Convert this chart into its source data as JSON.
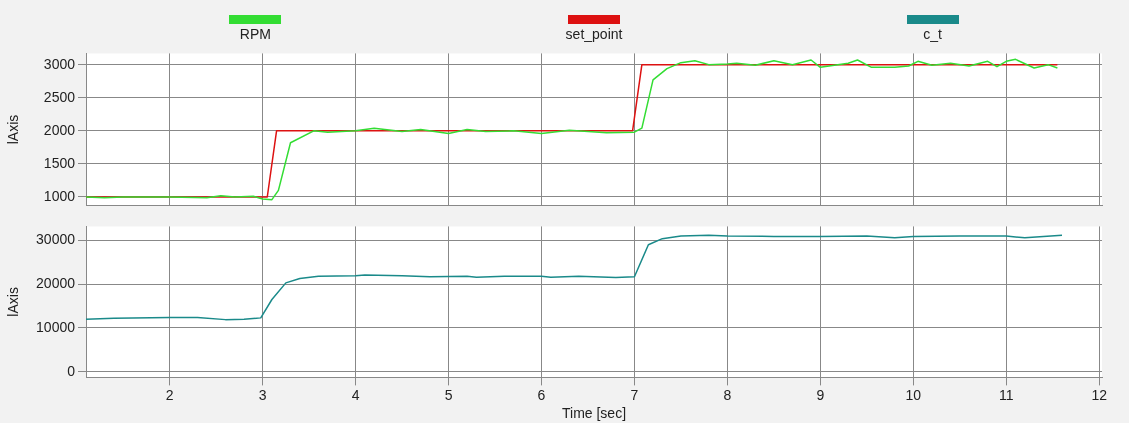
{
  "chart_data": [
    {
      "type": "line",
      "ylabel": "lAxis",
      "legend": "top",
      "grid": true,
      "tick_labels": "y",
      "marker": "none",
      "line_style": "solid",
      "xlim": [
        1.1,
        12.03
      ],
      "xticks": [
        2,
        3,
        4,
        5,
        6,
        7,
        8,
        9,
        10,
        11,
        12
      ],
      "ylim": [
        870,
        3170
      ],
      "yticks": [
        1000,
        1500,
        2000,
        2500,
        3000
      ],
      "series": [
        {
          "name": "RPM",
          "color": "#33dd33",
          "x": [
            1.1,
            1.3,
            1.5,
            2.0,
            2.4,
            2.55,
            2.7,
            2.9,
            3.0,
            3.1,
            3.17,
            3.3,
            3.55,
            3.7,
            4.0,
            4.2,
            4.5,
            4.7,
            5.0,
            5.2,
            5.4,
            5.7,
            6.0,
            6.3,
            6.5,
            6.7,
            7.0,
            7.08,
            7.2,
            7.35,
            7.5,
            7.65,
            7.8,
            8.0,
            8.1,
            8.3,
            8.5,
            8.7,
            8.9,
            9.0,
            9.3,
            9.4,
            9.55,
            9.8,
            9.95,
            10.05,
            10.2,
            10.4,
            10.6,
            10.8,
            10.9,
            11.0,
            11.1,
            11.3,
            11.45,
            11.55
          ],
          "values": [
            1000,
            990,
            1000,
            1000,
            990,
            1020,
            1000,
            1010,
            970,
            960,
            1100,
            1820,
            2000,
            1980,
            2000,
            2040,
            1990,
            2020,
            1960,
            2020,
            1990,
            2000,
            1960,
            2010,
            1990,
            1970,
            1980,
            2040,
            2770,
            2940,
            3030,
            3060,
            3000,
            3010,
            3020,
            2990,
            3060,
            3000,
            3070,
            2960,
            3020,
            3070,
            2960,
            2960,
            2980,
            3050,
            2990,
            3020,
            2980,
            3050,
            2970,
            3050,
            3080,
            2950,
            3000,
            2950
          ]
        },
        {
          "name": "set_point",
          "color": "#dd1111",
          "x": [
            1.1,
            3.05,
            3.15,
            6.98,
            7.08,
            11.55
          ],
          "values": [
            1000,
            1000,
            2000,
            2000,
            3000,
            3000
          ]
        }
      ]
    },
    {
      "type": "line",
      "ylabel": "lAxis",
      "xlabel": "Time [sec]",
      "legend": "top",
      "grid": true,
      "marker": "none",
      "line_style": "solid",
      "xlim": [
        1.1,
        12.03
      ],
      "xticks": [
        2,
        3,
        4,
        5,
        6,
        7,
        8,
        9,
        10,
        11,
        12
      ],
      "ylim": [
        -1300,
        33200
      ],
      "yticks": [
        0,
        10000,
        20000,
        30000
      ],
      "series": [
        {
          "name": "c_t",
          "color": "#1a8a8a",
          "x": [
            1.1,
            1.4,
            2.0,
            2.3,
            2.6,
            2.8,
            2.98,
            3.1,
            3.25,
            3.4,
            3.6,
            4.0,
            4.1,
            4.5,
            4.8,
            5.2,
            5.3,
            5.6,
            6.0,
            6.1,
            6.4,
            6.8,
            7.0,
            7.15,
            7.3,
            7.5,
            7.8,
            8.0,
            8.5,
            9.0,
            9.5,
            9.8,
            10.0,
            10.5,
            11.0,
            11.2,
            11.4,
            11.6
          ],
          "values": [
            12000,
            12200,
            12400,
            12400,
            11900,
            12000,
            12300,
            16500,
            20300,
            21300,
            21800,
            21900,
            22100,
            21900,
            21700,
            21800,
            21600,
            21800,
            21800,
            21600,
            21800,
            21500,
            21700,
            29000,
            30400,
            31000,
            31200,
            31000,
            30900,
            30900,
            31000,
            30600,
            30900,
            31000,
            31000,
            30600,
            30900,
            31200
          ]
        }
      ]
    }
  ]
}
